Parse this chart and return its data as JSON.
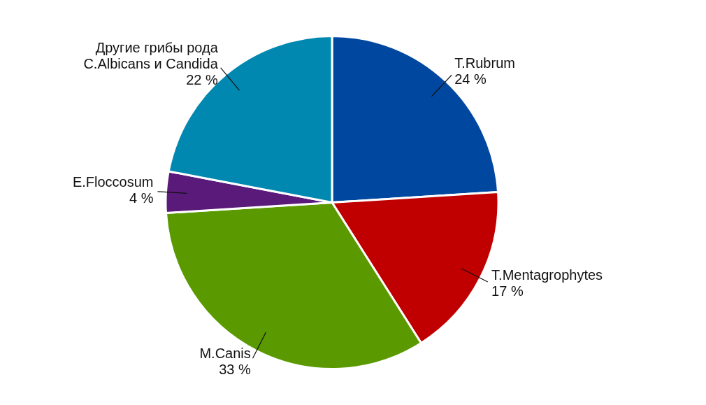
{
  "chart_data": {
    "type": "pie",
    "categories": [
      "T.Rubrum",
      "T.Mentagrophytes",
      "M.Canis",
      "E.Floccosum",
      "Другие грибы рода C.Albicans и Candida"
    ],
    "values": [
      24,
      17,
      33,
      4,
      22
    ],
    "colors": [
      "#0047a0",
      "#c00000",
      "#5a9a00",
      "#5a1a7a",
      "#0088b0"
    ],
    "value_labels": [
      "24 %",
      "17 %",
      "33 %",
      "4 %",
      "22 %"
    ]
  }
}
